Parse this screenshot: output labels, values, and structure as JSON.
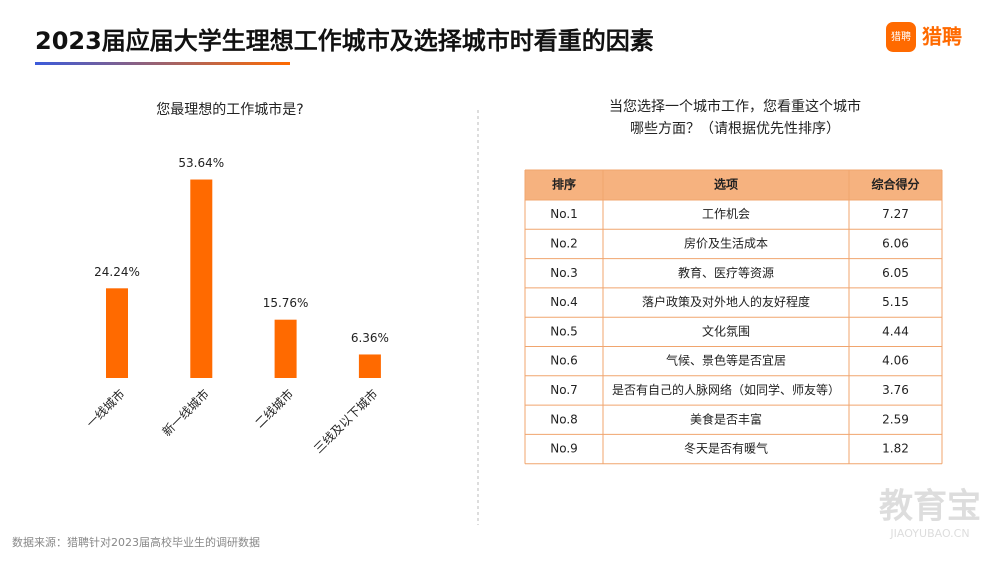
{
  "title": "2023届应届大学生理想工作城市及选择城市时看重的因素",
  "logo": "猎聘",
  "logo_icon": "猎聘",
  "source": "数据来源：猎聘针对2023届高校毕业生的调研数据",
  "watermark": {
    "main": "教育宝",
    "sub": "JIAOYUBAO.CN"
  },
  "chart_data": {
    "type": "bar",
    "title": "您最理想的工作城市是?",
    "categories": [
      "一线城市",
      "新一线城市",
      "二线城市",
      "三线及以下城市"
    ],
    "values": [
      24.24,
      53.64,
      15.76,
      6.36
    ],
    "value_labels": [
      "24.24%",
      "53.64%",
      "15.76%",
      "6.36%"
    ],
    "color": "#ff6a00"
  },
  "table": {
    "title_lines": [
      "当您选择一个城市工作，您看重这个城市",
      "哪些方面？（请根据优先性排序）"
    ],
    "header": [
      "排序",
      "选项",
      "综合得分"
    ],
    "rows": [
      [
        "No.1",
        "工作机会",
        7.27
      ],
      [
        "No.2",
        "房价及生活成本",
        6.06
      ],
      [
        "No.3",
        "教育、医疗等资源",
        6.05
      ],
      [
        "No.4",
        "落户政策及对外地人的友好程度",
        5.15
      ],
      [
        "No.5",
        "文化氛围",
        4.44
      ],
      [
        "No.6",
        "气候、景色等是否宜居",
        4.06
      ],
      [
        "No.7",
        "是否有自己的人脉网络（如同学、师友等）",
        3.76
      ],
      [
        "No.8",
        "美食是否丰富",
        2.59
      ],
      [
        "No.9",
        "冬天是否有暖气",
        1.82
      ]
    ]
  }
}
